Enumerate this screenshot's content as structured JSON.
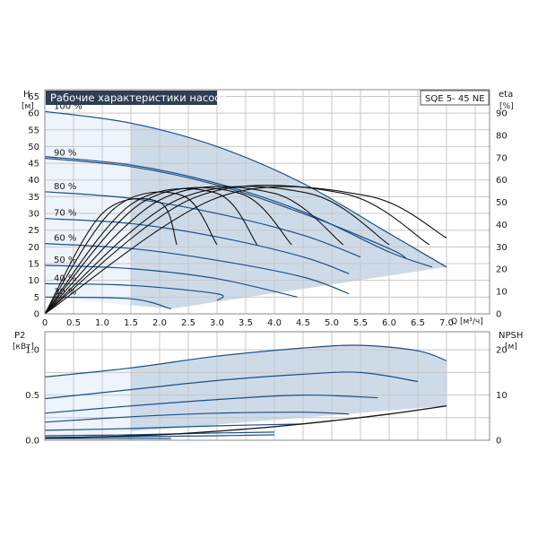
{
  "chart_data": [
    {
      "type": "line",
      "title": "Рабочие характеристики насоса",
      "model": "SQE 5- 45 NE",
      "y_label": "H",
      "y_unit": "[м]",
      "y2_label": "eta",
      "y2_unit": "[%]",
      "x_label": "Q [м³/ч]",
      "xlim": [
        0,
        7.75
      ],
      "ylim": [
        0,
        67
      ],
      "y2lim": [
        0,
        100.5
      ],
      "x_ticks": [
        "0",
        "0.5",
        "1.0",
        "1.5",
        "2.0",
        "2.5",
        "3.0",
        "3.5",
        "4.0",
        "4.5",
        "5.0",
        "5.5",
        "6.0",
        "6.5",
        "7.0"
      ],
      "x_tick_values": [
        0,
        0.5,
        1.0,
        1.5,
        2.0,
        2.5,
        3.0,
        3.5,
        4.0,
        4.5,
        5.0,
        5.5,
        6.0,
        6.5,
        7.0
      ],
      "y_ticks": [
        0,
        5,
        10,
        15,
        20,
        25,
        30,
        35,
        40,
        45,
        50,
        55,
        60,
        65
      ],
      "y2_ticks": [
        0,
        10,
        20,
        30,
        40,
        50,
        60,
        70,
        80,
        90
      ],
      "grid": true,
      "shade_start_q": 1.5,
      "series": [
        {
          "name": "100 %",
          "x": [
            0,
            1.5,
            3.0,
            4.5,
            6.0,
            7.0
          ],
          "y": [
            60.5,
            57,
            50,
            39,
            24,
            14
          ]
        },
        {
          "x": [
            0,
            1.5,
            3.0,
            4.5,
            6.0,
            6.75
          ],
          "y": [
            47,
            44.5,
            39,
            30.5,
            18.5,
            14
          ]
        },
        {
          "name": "90 %",
          "x": [
            0,
            1.5,
            3.0,
            4.5,
            6.0,
            6.3
          ],
          "y": [
            46.5,
            44,
            38.5,
            30,
            19.5,
            16.5
          ]
        },
        {
          "name": "80 %",
          "x": [
            0,
            1.5,
            3.0,
            4.5,
            5.5
          ],
          "y": [
            36.5,
            34.5,
            30,
            23.5,
            17
          ]
        },
        {
          "name": "70 %",
          "x": [
            0,
            1.5,
            3.0,
            4.5,
            5.3
          ],
          "y": [
            28.5,
            27,
            23,
            17,
            12
          ]
        },
        {
          "name": "60 %",
          "x": [
            0,
            1.5,
            3.0,
            4.5,
            5.3
          ],
          "y": [
            21,
            19.5,
            16,
            11,
            6
          ]
        },
        {
          "name": "50 %",
          "x": [
            0,
            1.5,
            3.0,
            4.4
          ],
          "y": [
            14.5,
            13.5,
            10.5,
            5
          ]
        },
        {
          "name": "40 %",
          "x": [
            0,
            1.5,
            3.0,
            3.0
          ],
          "y": [
            9,
            8.5,
            6,
            4
          ]
        },
        {
          "name": "30 %",
          "x": [
            0,
            1.5,
            2.2
          ],
          "y": [
            5,
            4.5,
            1.5
          ]
        }
      ],
      "efficiency_curves": [
        {
          "x": [
            0,
            1.0,
            2.0,
            2.3
          ],
          "y": [
            0,
            45,
            50,
            31
          ]
        },
        {
          "x": [
            0,
            1.2,
            2.4,
            3.0
          ],
          "y": [
            0,
            47,
            53,
            31
          ]
        },
        {
          "x": [
            0,
            1.5,
            3.0,
            3.7
          ],
          "y": [
            0,
            49,
            54,
            31
          ]
        },
        {
          "x": [
            0,
            1.7,
            3.4,
            4.3
          ],
          "y": [
            0,
            50,
            54,
            31
          ]
        },
        {
          "x": [
            0,
            2.0,
            4.0,
            5.2
          ],
          "y": [
            0,
            51,
            54,
            31
          ]
        },
        {
          "x": [
            0,
            2.3,
            4.6,
            6.0
          ],
          "y": [
            0,
            51,
            54,
            31
          ]
        },
        {
          "x": [
            0,
            2.6,
            5.2,
            6.7
          ],
          "y": [
            0,
            52,
            54,
            31
          ]
        },
        {
          "x": [
            0,
            3.0,
            5.6,
            7.0
          ],
          "y": [
            0,
            52,
            53,
            34
          ]
        }
      ]
    },
    {
      "type": "line",
      "y_label": "P2",
      "y_unit": "[кВт]",
      "y2_label": "NPSH",
      "y2_unit": "[м]",
      "xlim": [
        0,
        7.75
      ],
      "ylim": [
        0,
        1.2
      ],
      "y2lim": [
        0,
        24
      ],
      "y_ticks": [
        "0.0",
        "0.5",
        "1.0"
      ],
      "y_tick_values": [
        0,
        0.5,
        1.0
      ],
      "y2_ticks": [
        0,
        10,
        20
      ],
      "grid": true,
      "series": [
        {
          "x": [
            0,
            1.5,
            3.0,
            4.5,
            5.5,
            6.5,
            7.0
          ],
          "y": [
            0.7,
            0.8,
            0.93,
            1.02,
            1.05,
            0.99,
            0.88
          ]
        },
        {
          "x": [
            0,
            1.5,
            3.0,
            4.5,
            5.5,
            6.5
          ],
          "y": [
            0.46,
            0.56,
            0.66,
            0.73,
            0.75,
            0.65
          ]
        },
        {
          "x": [
            0,
            1.5,
            3.0,
            4.5,
            5.8
          ],
          "y": [
            0.3,
            0.38,
            0.45,
            0.5,
            0.47
          ]
        },
        {
          "x": [
            0,
            1.5,
            3.0,
            4.5,
            5.3
          ],
          "y": [
            0.2,
            0.26,
            0.3,
            0.31,
            0.29
          ]
        },
        {
          "x": [
            0,
            1.5,
            3.0,
            4.5
          ],
          "y": [
            0.11,
            0.13,
            0.16,
            0.18
          ]
        },
        {
          "x": [
            0,
            1.5,
            3.0,
            4.0
          ],
          "y": [
            0.05,
            0.06,
            0.08,
            0.09
          ]
        },
        {
          "x": [
            0,
            1.5,
            3.0,
            4.0
          ],
          "y": [
            0.03,
            0.04,
            0.05,
            0.06
          ]
        },
        {
          "x": [
            0,
            1.5,
            2.2
          ],
          "y": [
            0.02,
            0.02,
            0.02
          ]
        }
      ],
      "npsh": {
        "x": [
          0,
          1.0,
          2.0,
          3.0,
          4.0,
          5.0,
          6.0,
          7.0
        ],
        "y": [
          0.5,
          0.8,
          1.2,
          2.0,
          3.0,
          4.3,
          5.8,
          7.6
        ]
      }
    }
  ]
}
